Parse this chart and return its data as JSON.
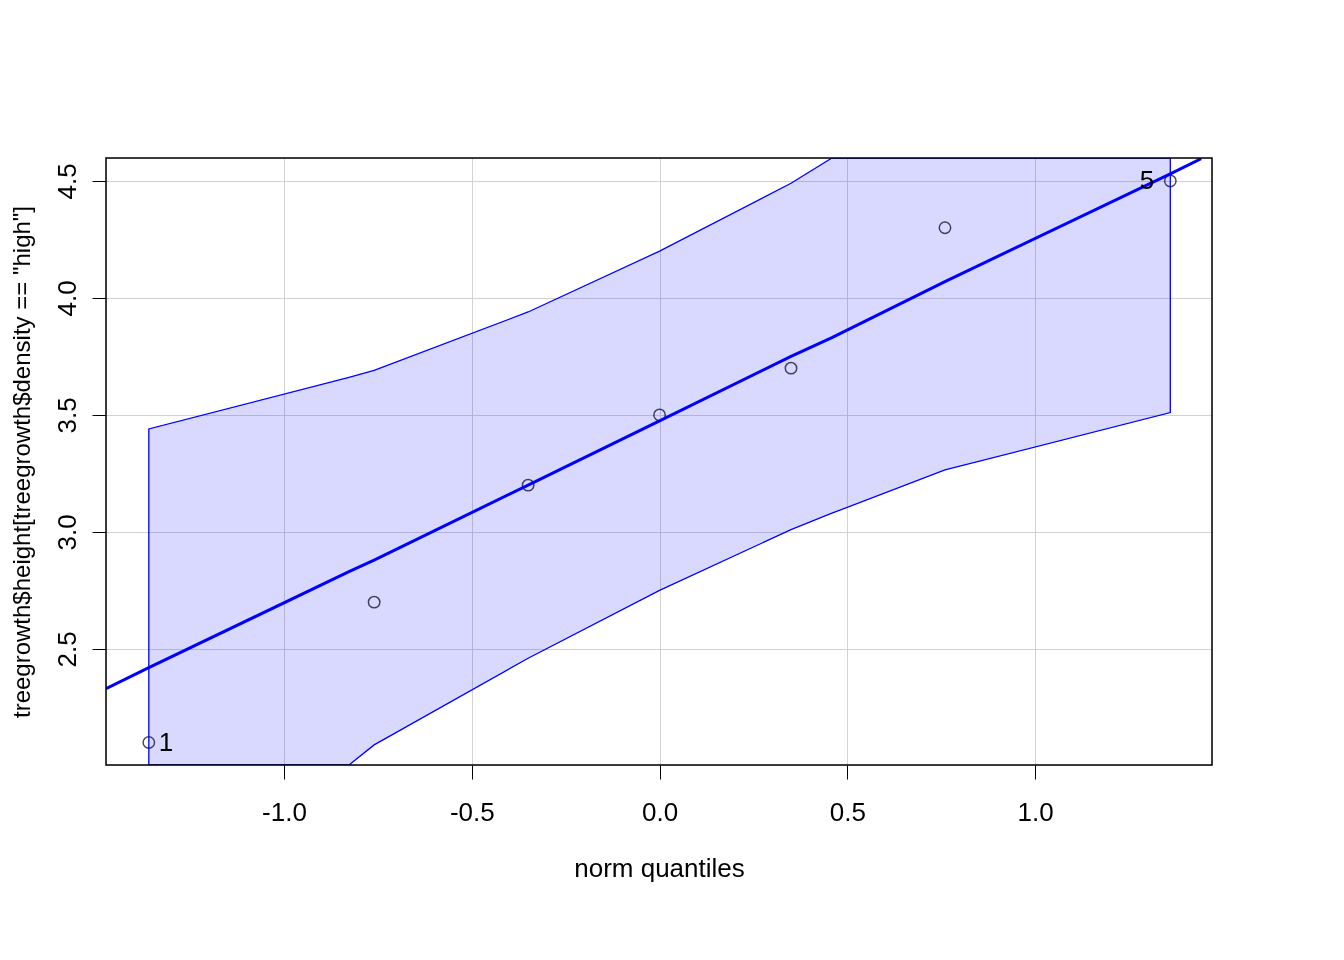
{
  "chart_data": {
    "type": "scatter",
    "xlabel": "norm quantiles",
    "ylabel": "treegrowth$height[treegrowth$density == \"high\"]",
    "xlim": [
      -1.474,
      1.471
    ],
    "ylim": [
      2.004,
      4.598
    ],
    "xticks": [
      {
        "value": -1,
        "label": "-1.0"
      },
      {
        "value": -0.5,
        "label": "-0.5"
      },
      {
        "value": 0,
        "label": "0.0"
      },
      {
        "value": 0.5,
        "label": "0.5"
      },
      {
        "value": 1,
        "label": "1.0"
      }
    ],
    "yticks": [
      2.5,
      {
        "value": 3,
        "label": "3.0"
      },
      3.5,
      {
        "value": 4,
        "label": "4.0"
      },
      4.5
    ],
    "grid": true,
    "marker": "circle",
    "series": [
      {
        "color": "#000000",
        "x": [
          -1.36,
          -0.76,
          -0.35,
          0,
          0.35,
          0.76,
          1.36
        ],
        "values": [
          2.1,
          2.7,
          3.2,
          3.5,
          3.7,
          4.3,
          4.5
        ]
      },
      {
        "type": "line",
        "color": "#0000ff",
        "line_style": "solid",
        "marker": "none",
        "x": [
          -1.474,
          -1.36,
          -0.827,
          -0.76,
          -0.35,
          0,
          0.35,
          0.459,
          0.76,
          1.36,
          1.442
        ],
        "values": [
          2.33,
          2.42,
          2.83,
          2.88,
          3.2,
          3.475,
          3.75,
          3.83,
          4.07,
          4.53,
          4.595
        ],
        "lower": [
          null,
          2.004,
          2.004,
          2.09,
          2.46,
          2.75,
          3.01,
          3.08,
          3.265,
          3.51,
          null
        ],
        "upper": [
          null,
          3.44,
          3.66,
          3.69,
          3.94,
          4.2,
          4.49,
          4.598,
          4.598,
          4.598,
          null
        ]
      }
    ],
    "annotations": [
      {
        "text": "1",
        "x": -1.36,
        "y": 2.1
      },
      {
        "text": "5",
        "x": 1.36,
        "y": 4.5
      }
    ]
  }
}
